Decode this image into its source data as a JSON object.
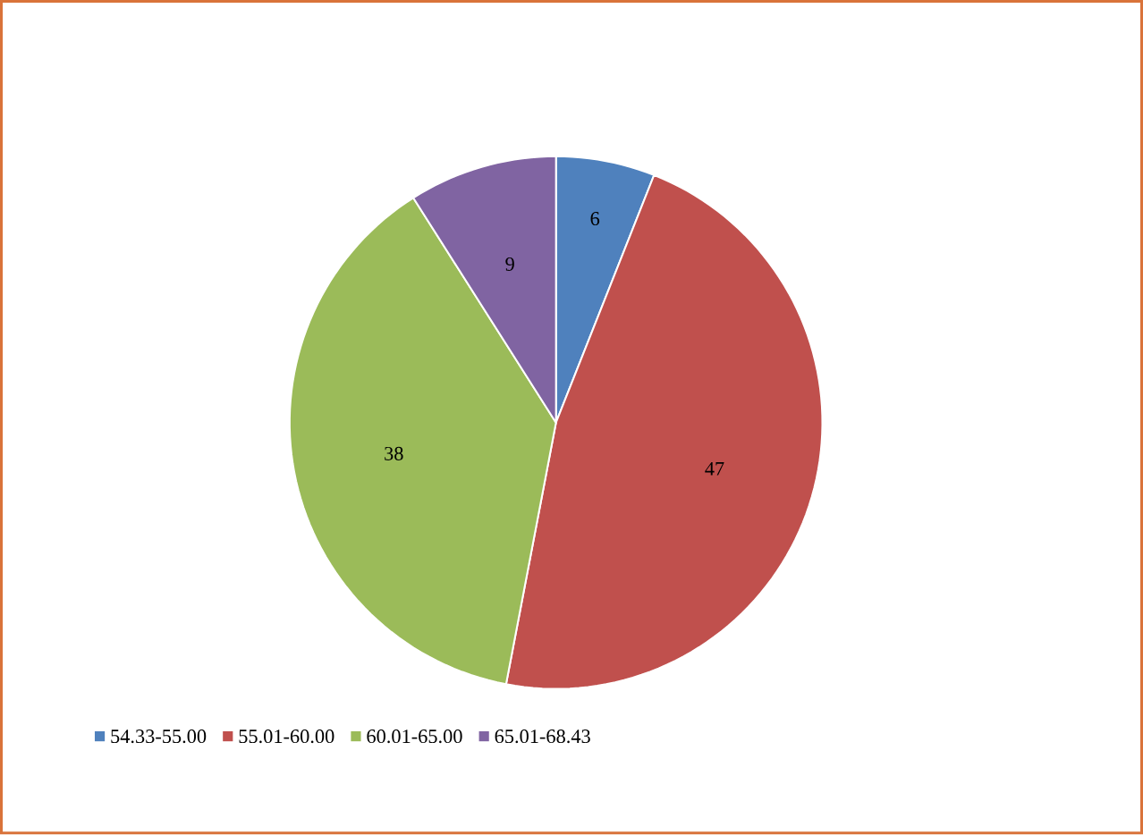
{
  "chart_data": {
    "type": "pie",
    "categories": [
      "54.33-55.00",
      "55.01-60.00",
      "60.01-65.00",
      "65.01-68.43"
    ],
    "values": [
      6,
      47,
      38,
      9
    ],
    "colors": [
      "#4f81bd",
      "#c0504d",
      "#9bbb59",
      "#8064a2"
    ],
    "data_labels": true,
    "legend": "bottom"
  }
}
